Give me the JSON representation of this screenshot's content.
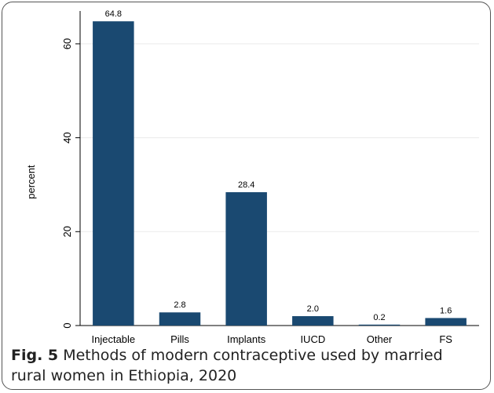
{
  "chart_data": {
    "type": "bar",
    "categories": [
      "Injectable",
      "Pills",
      "Implants",
      "IUCD",
      "Other",
      "FS"
    ],
    "values": [
      64.8,
      2.8,
      28.4,
      2.0,
      0.2,
      1.6
    ],
    "value_labels": [
      "64.8",
      "2.8",
      "28.4",
      "2.0",
      "0.2",
      "1.6"
    ],
    "ylabel": "percent",
    "yticks": [
      0,
      20,
      40,
      60
    ],
    "ylim": [
      0,
      67
    ],
    "grid": true,
    "bar_color": "#1a4971"
  },
  "caption": {
    "label": "Fig. 5",
    "text": "Methods of modern contraceptive used by married rural women in Ethiopia, 2020"
  }
}
